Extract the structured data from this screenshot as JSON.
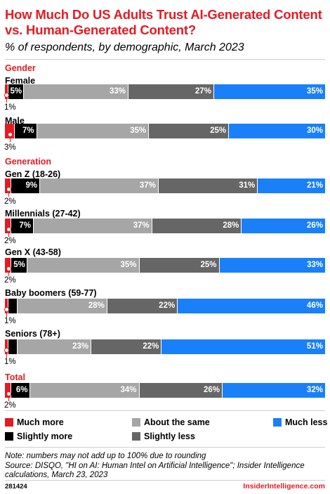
{
  "header": {
    "title": "How Much Do US Adults Trust AI-Generated Content vs. Human-Generated Content?",
    "subtitle": "% of respondents, by demographic, March 2023"
  },
  "chart_data": {
    "type": "bar",
    "stacked": true,
    "orientation": "horizontal",
    "xlim": [
      0,
      100
    ],
    "sections": [
      {
        "name": "Gender",
        "categories": [
          "Female",
          "Male"
        ]
      },
      {
        "name": "Generation",
        "categories": [
          "Gen Z (18-26)",
          "Millennials (27-42)",
          "Gen X (43-58)",
          "Baby boomers (59-77)",
          "Seniors (78+)"
        ]
      },
      {
        "name": "Total",
        "categories": [
          ""
        ]
      }
    ],
    "categories": [
      "Female",
      "Male",
      "Gen Z (18-26)",
      "Millennials (27-42)",
      "Gen X (43-58)",
      "Baby boomers (59-77)",
      "Seniors (78+)",
      "Total"
    ],
    "series": [
      {
        "name": "Much more",
        "color": "#e31b23",
        "values": [
          1,
          3,
          2,
          2,
          2,
          1,
          1,
          2
        ]
      },
      {
        "name": "Slightly more",
        "color": "#000000",
        "values": [
          5,
          7,
          9,
          7,
          5,
          3,
          3,
          6
        ]
      },
      {
        "name": "About the same",
        "color": "#a6a6a6",
        "values": [
          33,
          35,
          37,
          37,
          35,
          28,
          23,
          34
        ]
      },
      {
        "name": "Slightly less",
        "color": "#666666",
        "values": [
          27,
          25,
          31,
          28,
          25,
          22,
          22,
          26
        ]
      },
      {
        "name": "Much less",
        "color": "#1a80f9",
        "values": [
          35,
          30,
          21,
          26,
          33,
          46,
          51,
          32
        ]
      }
    ],
    "legend_position": "bottom",
    "grid": false
  },
  "footer": {
    "note": "Note: numbers may not add up to 100% due to rounding",
    "source": "Source: DISQO, \"HI on AI: Human Intel on Artificial Intelligence\"; Insider Intelligence calculations, March 23, 2023",
    "chart_id": "281424",
    "brand": "InsiderIntelligence.com"
  }
}
